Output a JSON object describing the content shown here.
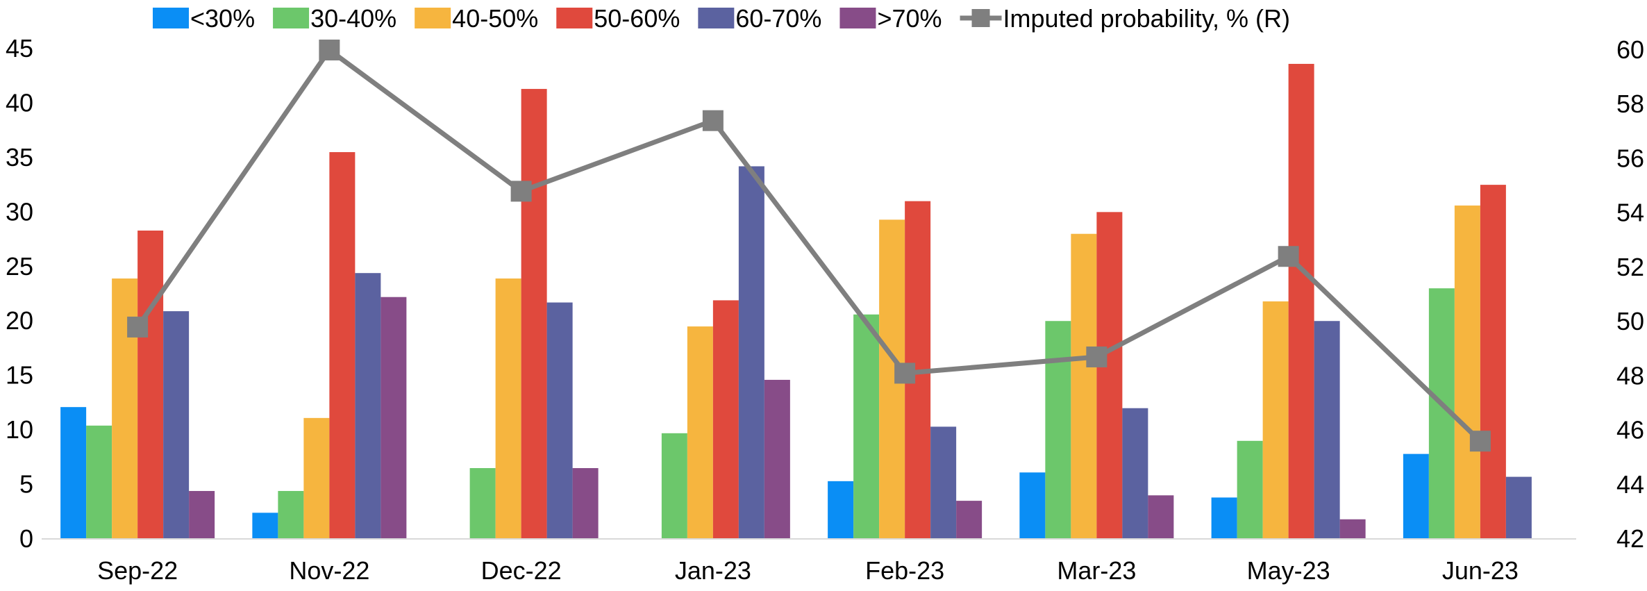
{
  "chart_data": {
    "type": "bar",
    "title": "",
    "xlabel": "",
    "ylabel": "",
    "y2label": "",
    "categories": [
      "Sep-22",
      "Nov-22",
      "Dec-22",
      "Jan-23",
      "Feb-23",
      "Mar-23",
      "May-23",
      "Jun-23"
    ],
    "ylim": [
      0,
      45
    ],
    "y_ticks": [
      0,
      5,
      10,
      15,
      20,
      25,
      30,
      35,
      40,
      45
    ],
    "y2lim": [
      42,
      60
    ],
    "y2_ticks": [
      42,
      44,
      46,
      48,
      50,
      52,
      54,
      56,
      58,
      60
    ],
    "grid": false,
    "legend_position": "top",
    "series": [
      {
        "name": "<30%",
        "type": "bar",
        "axis": "left",
        "color": "#0A8EF5",
        "values": [
          12.1,
          2.4,
          null,
          null,
          5.3,
          6.1,
          3.8,
          7.8
        ]
      },
      {
        "name": "30-40%",
        "type": "bar",
        "axis": "left",
        "color": "#6CC76B",
        "values": [
          10.4,
          4.4,
          6.5,
          9.7,
          20.6,
          20.0,
          9.0,
          23.0
        ]
      },
      {
        "name": "40-50%",
        "type": "bar",
        "axis": "left",
        "color": "#F6B53F",
        "values": [
          23.9,
          11.1,
          23.9,
          19.5,
          29.3,
          28.0,
          21.8,
          30.6
        ]
      },
      {
        "name": "50-60%",
        "type": "bar",
        "axis": "left",
        "color": "#E0493D",
        "values": [
          28.3,
          35.5,
          41.3,
          21.9,
          31.0,
          30.0,
          43.6,
          32.5
        ]
      },
      {
        "name": "60-70%",
        "type": "bar",
        "axis": "left",
        "color": "#5B62A0",
        "values": [
          20.9,
          24.4,
          21.7,
          34.2,
          10.3,
          12.0,
          20.0,
          5.7
        ]
      },
      {
        "name": ">70%",
        "type": "bar",
        "axis": "left",
        "color": "#874C88",
        "values": [
          4.4,
          22.2,
          6.5,
          14.6,
          3.5,
          4.0,
          1.8,
          null
        ]
      },
      {
        "name": "Imputed probability, % (R)",
        "type": "line",
        "axis": "right",
        "color": "#7F7F7F",
        "marker": "square",
        "values": [
          49.8,
          60.0,
          54.8,
          57.4,
          48.1,
          48.7,
          52.4,
          45.6
        ]
      }
    ]
  }
}
